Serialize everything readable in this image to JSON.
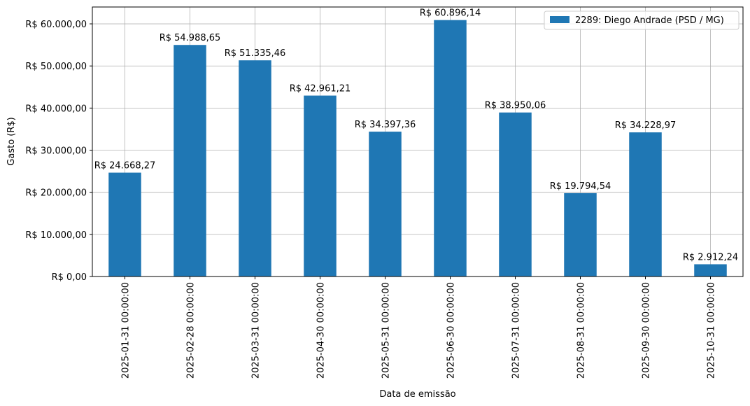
{
  "chart_data": {
    "type": "bar",
    "title": "",
    "xlabel": "Data de emissão",
    "ylabel": "Gasto (R$)",
    "ylim": [
      0,
      64000
    ],
    "yticks": [
      0,
      10000,
      20000,
      30000,
      40000,
      50000,
      60000
    ],
    "ytick_labels": [
      "R$ 0,00",
      "R$ 10.000,00",
      "R$ 20.000,00",
      "R$ 30.000,00",
      "R$ 40.000,00",
      "R$ 50.000,00",
      "R$ 60.000,00"
    ],
    "grid": true,
    "legend_position": "top-right",
    "categories": [
      "2025-01-31 00:00:00",
      "2025-02-28 00:00:00",
      "2025-03-31 00:00:00",
      "2025-04-30 00:00:00",
      "2025-05-31 00:00:00",
      "2025-06-30 00:00:00",
      "2025-07-31 00:00:00",
      "2025-08-31 00:00:00",
      "2025-09-30 00:00:00",
      "2025-10-31 00:00:00"
    ],
    "series": [
      {
        "name": "2289: Diego Andrade (PSD / MG)",
        "color": "#1f77b4",
        "values": [
          24668.27,
          54988.65,
          51335.46,
          42961.21,
          34397.36,
          60896.14,
          38950.06,
          19794.54,
          34228.97,
          2912.24
        ],
        "value_labels": [
          "R$ 24.668,27",
          "R$ 54.988,65",
          "R$ 51.335,46",
          "R$ 42.961,21",
          "R$ 34.397,36",
          "R$ 60.896,14",
          "R$ 38.950,06",
          "R$ 19.794,54",
          "R$ 34.228,97",
          "R$ 2.912,24"
        ]
      }
    ]
  }
}
